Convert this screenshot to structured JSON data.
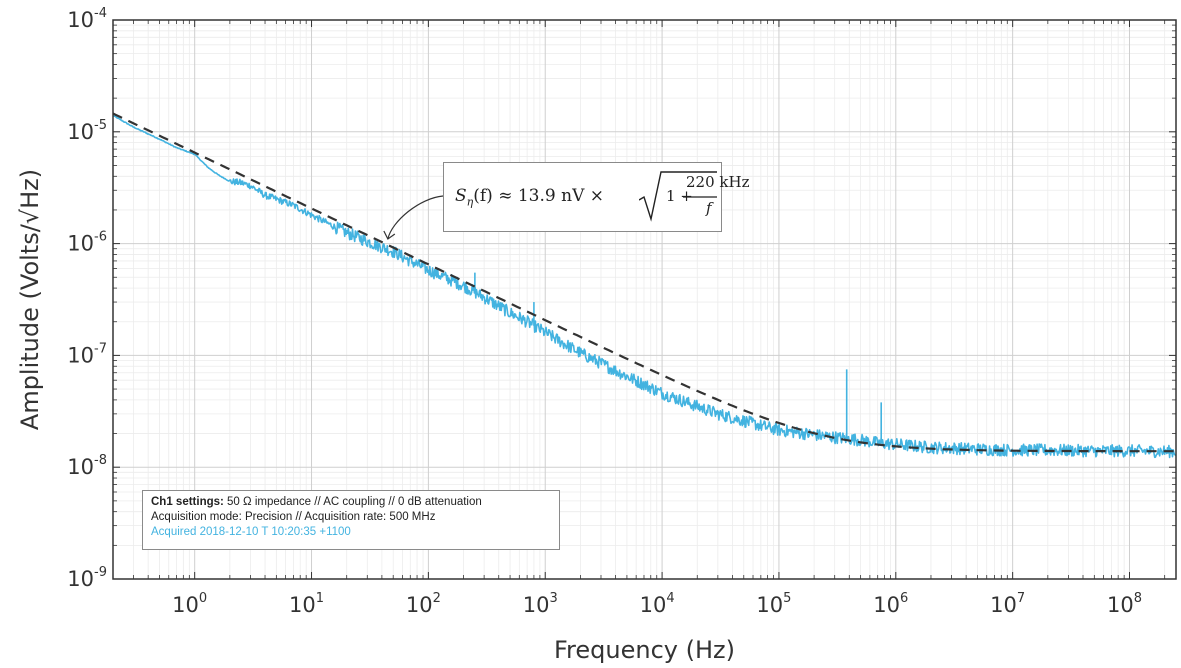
{
  "chart_data": {
    "type": "line",
    "xscale": "log",
    "yscale": "log",
    "xlabel": "Frequency (Hz)",
    "ylabel": "Amplitude (Volts/√Hz)",
    "xlim": [
      0.2,
      250000000
    ],
    "ylim": [
      1e-09,
      0.0001
    ],
    "x_ticks": [
      {
        "base": "10",
        "exp": "0",
        "value": 1
      },
      {
        "base": "10",
        "exp": "1",
        "value": 10
      },
      {
        "base": "10",
        "exp": "2",
        "value": 100
      },
      {
        "base": "10",
        "exp": "3",
        "value": 1000
      },
      {
        "base": "10",
        "exp": "4",
        "value": 10000
      },
      {
        "base": "10",
        "exp": "5",
        "value": 100000
      },
      {
        "base": "10",
        "exp": "6",
        "value": 1000000
      },
      {
        "base": "10",
        "exp": "7",
        "value": 10000000
      },
      {
        "base": "10",
        "exp": "8",
        "value": 100000000
      }
    ],
    "y_ticks": [
      {
        "base": "10",
        "exp": "-4",
        "value": 0.0001
      },
      {
        "base": "10",
        "exp": "-5",
        "value": 1e-05
      },
      {
        "base": "10",
        "exp": "-6",
        "value": 1e-06
      },
      {
        "base": "10",
        "exp": "-7",
        "value": 1e-07
      },
      {
        "base": "10",
        "exp": "-8",
        "value": 1e-08
      },
      {
        "base": "10",
        "exp": "-9",
        "value": 1e-09
      }
    ],
    "grid": true,
    "series": [
      {
        "color": "#43b3e0",
        "style": "solid",
        "x": [
          0.2,
          0.3,
          0.5,
          0.7,
          1.0,
          1.3,
          1.6,
          2.0,
          2.5,
          3.0,
          4.0,
          5.0,
          7.0,
          10,
          15,
          20,
          30,
          50,
          70,
          100,
          150,
          200,
          300,
          500,
          700,
          1000,
          1500,
          2000,
          3000,
          5000,
          7000,
          10000,
          20000,
          30000,
          50000,
          70000,
          100000,
          200000,
          300000,
          500000,
          700000,
          1000000,
          2000000,
          3000000,
          5000000,
          10000000,
          20000000,
          50000000,
          100000000,
          250000000
        ],
        "y": [
          1.4e-05,
          1.1e-05,
          8.6e-06,
          7.2e-06,
          6.3e-06,
          4.8e-06,
          4.1e-06,
          3.6e-06,
          3.5e-06,
          3.3e-06,
          2.7e-06,
          2.5e-06,
          2.2e-06,
          1.8e-06,
          1.45e-06,
          1.25e-06,
          1.05e-06,
          8.5e-07,
          7e-07,
          5.8e-07,
          4.8e-07,
          4.2e-07,
          3.3e-07,
          2.4e-07,
          2e-07,
          1.6e-07,
          1.25e-07,
          1.05e-07,
          8.5e-08,
          6.5e-08,
          5.5e-08,
          4.6e-08,
          3.5e-08,
          3e-08,
          2.6e-08,
          2.35e-08,
          2.15e-08,
          1.95e-08,
          1.85e-08,
          1.75e-08,
          1.65e-08,
          1.6e-08,
          1.5e-08,
          1.48e-08,
          1.45e-08,
          1.42e-08,
          1.42e-08,
          1.4e-08,
          1.4e-08,
          1.38e-08
        ],
        "spikes": [
          {
            "x": 250,
            "y": 5.5e-07
          },
          {
            "x": 800,
            "y": 3e-07
          },
          {
            "x": 380000,
            "y": 7.5e-08
          },
          {
            "x": 750000,
            "y": 3.8e-08
          }
        ]
      },
      {
        "color": "#333333",
        "style": "dashed",
        "formula": "13.9e-9*sqrt(1+220000/f)",
        "x": [
          0.2,
          250000000
        ]
      }
    ]
  },
  "annotation": {
    "lhs_s": "S",
    "lhs_sub": "η",
    "lhs_f": "(f)",
    "lhs_rest": " ≈ 13.9 nV ×",
    "numerator": "220 kHz",
    "denominator_f": "f",
    "one_plus": "1 +",
    "arrow_target": {
      "x": 45,
      "y": 1.1e-06
    }
  },
  "settings": {
    "line1_bold": "Ch1 settings:",
    "line1_rest": " 50 Ω impedance  //  AC coupling  //  0 dB attenuation",
    "line2": "Acquisition mode: Precision  //  Acquisition rate: 500 MHz",
    "line3": "Acquired 2018-12-10 T 10:20:35 +1100"
  }
}
